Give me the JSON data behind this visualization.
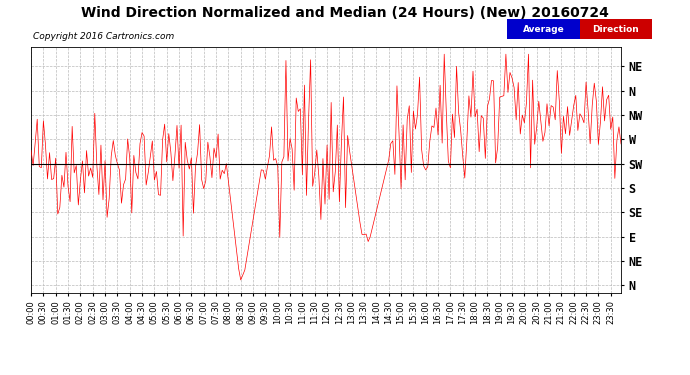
{
  "title": "Wind Direction Normalized and Median (24 Hours) (New) 20160724",
  "copyright": "Copyright 2016 Cartronics.com",
  "ytick_labels": [
    "NE",
    "N",
    "NW",
    "W",
    "SW",
    "S",
    "SE",
    "E",
    "NE",
    "N"
  ],
  "ytick_values": [
    9,
    8,
    7,
    6,
    5,
    4,
    3,
    2,
    1,
    0
  ],
  "avg_line_y": 5.0,
  "avg_line_color": "#000000",
  "direction_line_color": "#ff0000",
  "bg_color": "#ffffff",
  "grid_color": "#bbbbbb",
  "legend_avg_bg": "#0000cc",
  "legend_dir_bg": "#cc0000",
  "legend_text_color": "#ffffff",
  "title_fontsize": 10,
  "copyright_fontsize": 6.5,
  "xlabel_fontsize": 6,
  "ylabel_fontsize": 8.5
}
